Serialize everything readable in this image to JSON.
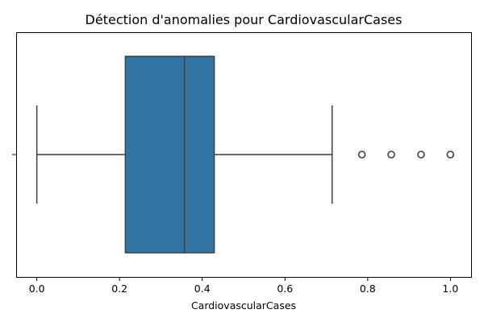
{
  "chart_data": {
    "type": "box",
    "title": "Détection d'anomalies pour CardiovascularCases",
    "xlabel": "CardiovascularCases",
    "ylabel": "",
    "xlim": [
      -0.05,
      1.05
    ],
    "x_ticks": [
      0.0,
      0.2,
      0.4,
      0.6,
      0.8,
      1.0
    ],
    "x_tick_labels": [
      "0.0",
      "0.2",
      "0.4",
      "0.6",
      "0.8",
      "1.0"
    ],
    "orientation": "horizontal",
    "box": {
      "whisker_low": 0.0,
      "q1": 0.214,
      "median": 0.357,
      "q3": 0.429,
      "whisker_high": 0.714,
      "outliers": [
        0.786,
        0.857,
        0.929,
        1.0
      ],
      "color": "#3274a1"
    },
    "grid": false,
    "legend": "none"
  }
}
